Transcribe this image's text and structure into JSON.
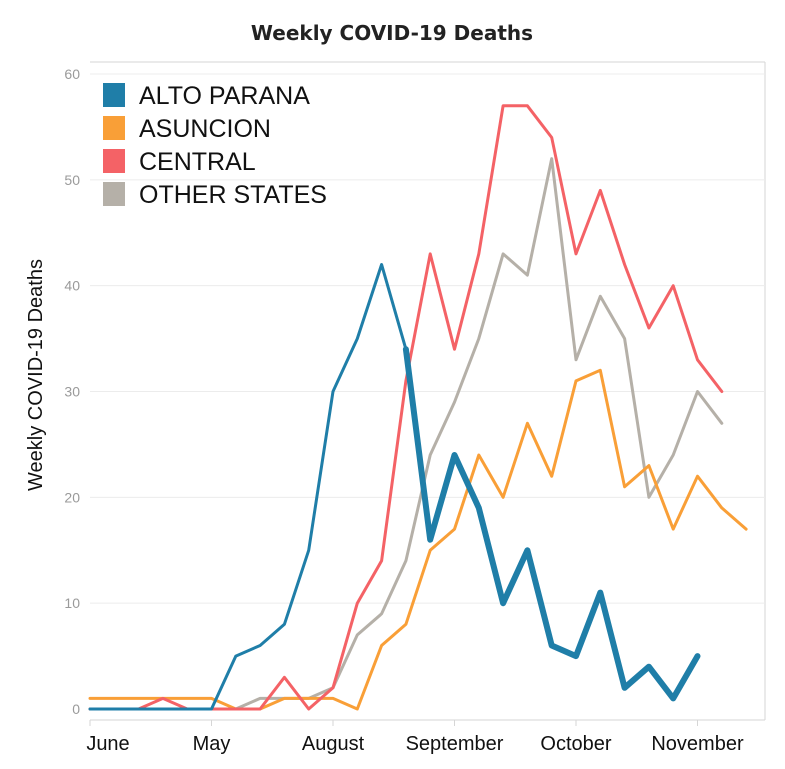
{
  "chart_data": {
    "type": "line",
    "title": "Weekly COVID-19 Deaths",
    "xlabel": "",
    "ylabel": "Weekly COVID-19 Deaths",
    "ylim": [
      0,
      60
    ],
    "yticks": [
      0,
      10,
      20,
      30,
      40,
      50,
      60
    ],
    "grid": true,
    "legend": "top-left",
    "x_tick_labels": [
      {
        "label": "June",
        "week": 0
      },
      {
        "label": "May",
        "week": 5
      },
      {
        "label": "August",
        "week": 10
      },
      {
        "label": "September",
        "week": 15
      },
      {
        "label": "October",
        "week": 20
      },
      {
        "label": "November",
        "week": 25
      }
    ],
    "weeks": [
      0,
      1,
      2,
      3,
      4,
      5,
      6,
      7,
      8,
      9,
      10,
      11,
      12,
      13,
      14,
      15,
      16,
      17,
      18,
      19,
      20,
      21,
      22,
      23,
      24,
      25,
      26,
      27,
      28
    ],
    "series": [
      {
        "name": "OTHER STATES",
        "color": "#b5b0a8",
        "stroke_width": 3,
        "values": [
          0,
          0,
          0,
          0,
          0,
          0,
          0,
          1,
          1,
          1,
          2,
          7,
          9,
          14,
          24,
          29,
          35,
          43,
          41,
          52,
          33,
          39,
          35,
          20,
          24,
          30,
          27
        ]
      },
      {
        "name": "ASUNCION",
        "color": "#f99f37",
        "stroke_width": 3,
        "values": [
          1,
          1,
          1,
          1,
          1,
          1,
          0,
          0,
          1,
          1,
          1,
          0,
          6,
          8,
          15,
          17,
          24,
          20,
          27,
          22,
          31,
          32,
          21,
          23,
          17,
          22,
          19,
          17
        ]
      },
      {
        "name": "CENTRAL",
        "color": "#f46266",
        "stroke_width": 3,
        "values": [
          0,
          0,
          0,
          1,
          0,
          0,
          0,
          0,
          3,
          0,
          2,
          10,
          14,
          31,
          43,
          34,
          43,
          57,
          57,
          54,
          43,
          49,
          42,
          36,
          40,
          33,
          30
        ]
      },
      {
        "name": "ALTO PARANA",
        "color": "#1f7ea8",
        "stroke_width": 3,
        "values": [
          0,
          0,
          0,
          0,
          0,
          0,
          5,
          6,
          8,
          15,
          30,
          35,
          42,
          34,
          16,
          24,
          19,
          10,
          15,
          6,
          5,
          11,
          2,
          4,
          1,
          5
        ]
      }
    ],
    "alto_parana_offset_weeks": 0
  },
  "legend_order": [
    "ALTO PARANA",
    "ASUNCION",
    "CENTRAL",
    "OTHER STATES"
  ]
}
